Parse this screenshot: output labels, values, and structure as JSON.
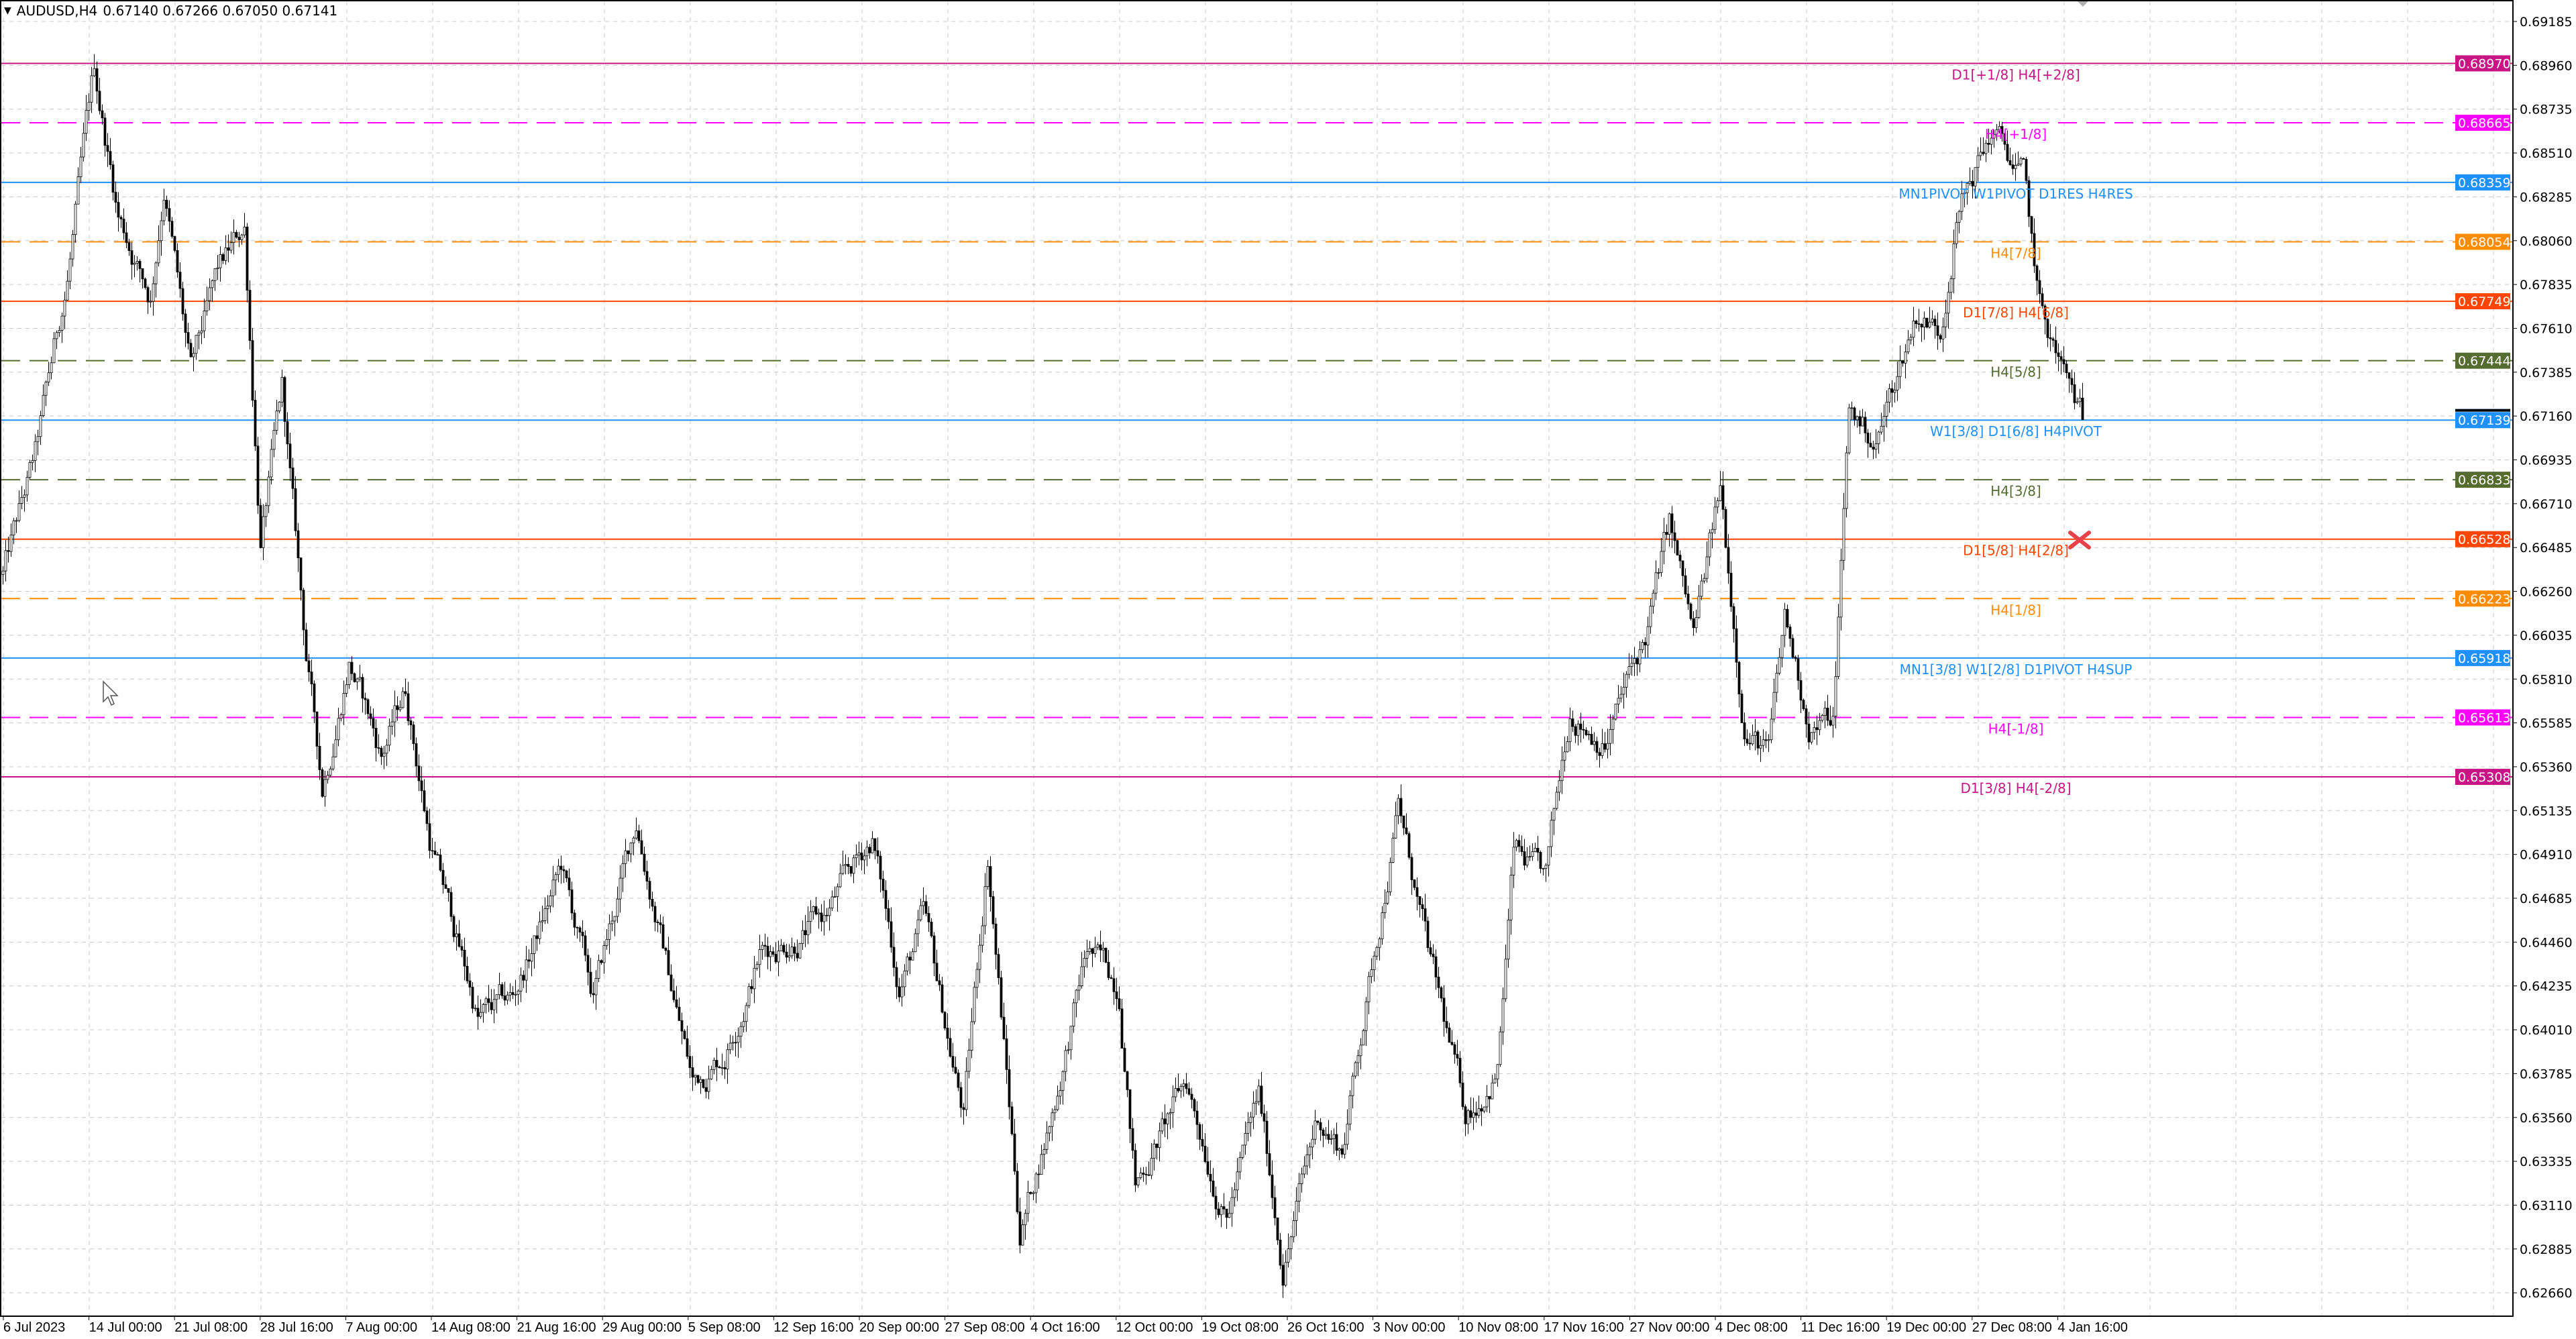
{
  "header": {
    "symbol_timeframe": "AUDUSD,H4",
    "ohlc": "0.67140 0.67266 0.67050 0.67141",
    "menu_icon": "triangle-down-icon"
  },
  "price_axis": {
    "ticks": [
      "0.69185",
      "0.68960",
      "0.68735",
      "0.68510",
      "0.68285",
      "0.68060",
      "0.67835",
      "0.67610",
      "0.67385",
      "0.67160",
      "0.66935",
      "0.66710",
      "0.66485",
      "0.66260",
      "0.66035",
      "0.65810",
      "0.65585",
      "0.65360",
      "0.65135",
      "0.64910",
      "0.64685",
      "0.64460",
      "0.64235",
      "0.64010",
      "0.63785",
      "0.63560",
      "0.63335",
      "0.63110",
      "0.62885",
      "0.62660"
    ],
    "current_price": "0.67141",
    "current_price_color": "#000000"
  },
  "time_axis": {
    "labels": [
      "6 Jul 2023",
      "14 Jul 00:00",
      "21 Jul 08:00",
      "28 Jul 16:00",
      "7 Aug 00:00",
      "14 Aug 08:00",
      "21 Aug 16:00",
      "29 Aug 00:00",
      "5 Sep 08:00",
      "12 Sep 16:00",
      "20 Sep 00:00",
      "27 Sep 08:00",
      "4 Oct 16:00",
      "12 Oct 00:00",
      "19 Oct 08:00",
      "26 Oct 16:00",
      "3 Nov 00:00",
      "10 Nov 08:00",
      "17 Nov 16:00",
      "27 Nov 00:00",
      "4 Dec 08:00",
      "11 Dec 16:00",
      "19 Dec 00:00",
      "27 Dec 08:00",
      "4 Jan 16:00"
    ]
  },
  "levels": [
    {
      "price": "0.68970",
      "label": "D1[+1/8] H4[+2/8]",
      "color": "#c71585",
      "style": "solid"
    },
    {
      "price": "0.68665",
      "label": "H4[+1/8]",
      "color": "#ff00ff",
      "style": "dashed"
    },
    {
      "price": "0.68359",
      "label": "MN1PIVOT W1PIVOT D1RES H4RES",
      "color": "#1e90ff",
      "style": "solid"
    },
    {
      "price": "0.68054",
      "label": "H4[7/8]",
      "color": "#ff8c00",
      "style": "dashed"
    },
    {
      "price": "0.67749",
      "label": "D1[7/8] H4[6/8]",
      "color": "#ff4500",
      "style": "solid"
    },
    {
      "price": "0.67444",
      "label": "H4[5/8]",
      "color": "#556b2f",
      "style": "dashed"
    },
    {
      "price": "0.67139",
      "label": "W1[3/8] D1[6/8] H4PIVOT",
      "color": "#1e90ff",
      "style": "solid"
    },
    {
      "price": "0.66833",
      "label": "H4[3/8]",
      "color": "#556b2f",
      "style": "dashed"
    },
    {
      "price": "0.66528",
      "label": "D1[5/8] H4[2/8]",
      "color": "#ff4500",
      "style": "solid"
    },
    {
      "price": "0.66223",
      "label": "H4[1/8]",
      "color": "#ff8c00",
      "style": "dashed"
    },
    {
      "price": "0.65918",
      "label": "MN1[3/8] W1[2/8] D1PIVOT H4SUP",
      "color": "#1e90ff",
      "style": "solid"
    },
    {
      "price": "0.65613",
      "label": "H4[-1/8]",
      "color": "#ff00ff",
      "style": "dashed"
    },
    {
      "price": "0.65308",
      "label": "D1[3/8] H4[-2/8]",
      "color": "#c71585",
      "style": "solid"
    }
  ],
  "price_path": [
    [
      0,
      0.66346
    ],
    [
      12,
      0.66936
    ],
    [
      24,
      0.67863
    ],
    [
      34,
      0.68916
    ],
    [
      43,
      0.682
    ],
    [
      55,
      0.67779
    ],
    [
      60,
      0.68368
    ],
    [
      70,
      0.67357
    ],
    [
      80,
      0.67863
    ],
    [
      90,
      0.68116
    ],
    [
      96,
      0.66515
    ],
    [
      104,
      0.67273
    ],
    [
      113,
      0.65925
    ],
    [
      119,
      0.65251
    ],
    [
      129,
      0.65925
    ],
    [
      141,
      0.6542
    ],
    [
      150,
      0.65757
    ],
    [
      159,
      0.64998
    ],
    [
      177,
      0.64072
    ],
    [
      190,
      0.64156
    ],
    [
      208,
      0.6483
    ],
    [
      220,
      0.64156
    ],
    [
      236,
      0.65083
    ],
    [
      257,
      0.63735
    ],
    [
      269,
      0.63903
    ],
    [
      282,
      0.64409
    ],
    [
      306,
      0.64577
    ],
    [
      324,
      0.64998
    ],
    [
      334,
      0.6424
    ],
    [
      343,
      0.64577
    ],
    [
      358,
      0.63566
    ],
    [
      367,
      0.64914
    ],
    [
      379,
      0.62976
    ],
    [
      392,
      0.6365
    ],
    [
      404,
      0.64409
    ],
    [
      416,
      0.6424
    ],
    [
      422,
      0.63229
    ],
    [
      441,
      0.63735
    ],
    [
      456,
      0.63061
    ],
    [
      468,
      0.6365
    ],
    [
      477,
      0.62808
    ],
    [
      490,
      0.63566
    ],
    [
      499,
      0.63398
    ],
    [
      511,
      0.64409
    ],
    [
      520,
      0.65167
    ],
    [
      532,
      0.64324
    ],
    [
      545,
      0.63566
    ],
    [
      557,
      0.63819
    ],
    [
      563,
      0.64914
    ],
    [
      575,
      0.64746
    ],
    [
      584,
      0.65672
    ],
    [
      597,
      0.65504
    ],
    [
      612,
      0.66009
    ],
    [
      621,
      0.66599
    ],
    [
      630,
      0.66009
    ],
    [
      640,
      0.66768
    ],
    [
      649,
      0.65588
    ],
    [
      658,
      0.6542
    ],
    [
      664,
      0.66094
    ],
    [
      673,
      0.65588
    ],
    [
      682,
      0.65588
    ],
    [
      688,
      0.67189
    ],
    [
      698,
      0.6702
    ],
    [
      713,
      0.67694
    ],
    [
      722,
      0.6761
    ],
    [
      728,
      0.682
    ],
    [
      741,
      0.68621
    ],
    [
      753,
      0.68368
    ],
    [
      759,
      0.67694
    ],
    [
      768,
      0.67357
    ],
    [
      775,
      0.67141
    ]
  ],
  "bar_count": 776,
  "markers": {
    "red_x_icon": "close-x-icon",
    "cursor_icon": "arrow-cursor-icon",
    "shift_marker_icon": "triangle-down-icon"
  },
  "colors": {
    "grid": "#c8c8c8",
    "bull_body": "#ffffff",
    "bear_body": "#000000",
    "candle_outline": "#000000",
    "red_x": "#e8424a"
  }
}
